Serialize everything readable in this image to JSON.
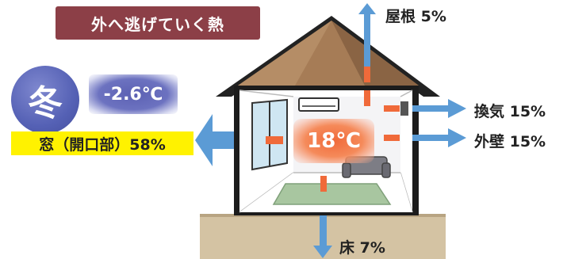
{
  "title": "外へ逃げていく熱",
  "season": "冬",
  "outside_temp": "-2.6℃",
  "inside_temp": "18℃",
  "heat_loss": {
    "window": "窓（開口部）58%",
    "roof": "屋根 5%",
    "ventilation": "換気 15%",
    "wall": "外壁 15%",
    "floor": "床 7%"
  },
  "colors": {
    "banner": "#8c3f47",
    "season_circle": "#5561b5",
    "window_label_bg": "#fff200",
    "heat_arrow": "#5b9bd5",
    "inside_heat": "#f06a3a",
    "roof": "#a07a5a",
    "ground": "#d2c0a0"
  }
}
